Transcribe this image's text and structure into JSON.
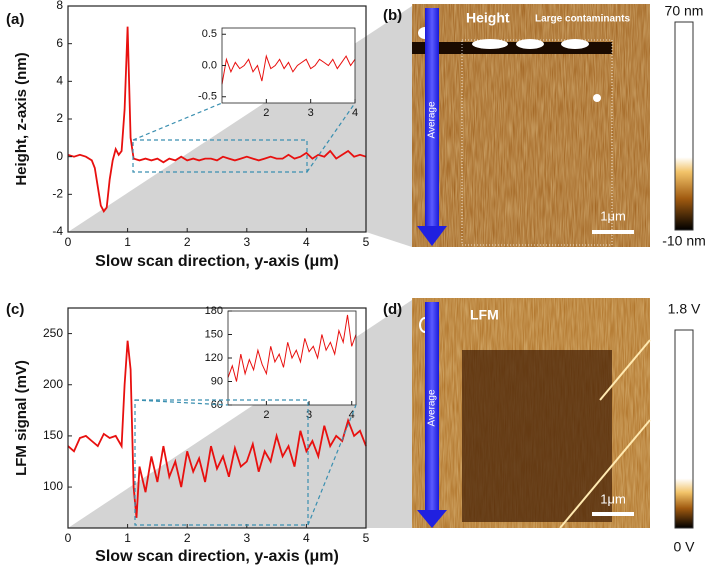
{
  "chart_data": [
    {
      "type": "line",
      "title": "(a)",
      "xlabel": "Slow scan direction, y-axis (μm)",
      "ylabel": "Height, z-axis (nm)",
      "x": [
        0,
        0.1,
        0.2,
        0.3,
        0.4,
        0.45,
        0.5,
        0.55,
        0.6,
        0.65,
        0.7,
        0.75,
        0.8,
        0.85,
        0.9,
        0.95,
        1.0,
        1.05,
        1.1,
        1.2,
        1.3,
        1.4,
        1.5,
        1.6,
        1.7,
        1.8,
        1.9,
        2.0,
        2.1,
        2.2,
        2.3,
        2.4,
        2.5,
        2.6,
        2.7,
        2.8,
        2.9,
        3.0,
        3.1,
        3.2,
        3.3,
        3.4,
        3.5,
        3.6,
        3.7,
        3.8,
        3.9,
        4.0,
        4.1,
        4.2,
        4.3,
        4.4,
        4.5,
        4.6,
        4.7,
        4.8,
        4.9,
        5.0
      ],
      "series": [
        {
          "color": "#e8100f",
          "values": [
            0.1,
            0,
            0.1,
            0,
            -0.2,
            -0.6,
            -1.6,
            -2.6,
            -2.9,
            -2.7,
            -1.2,
            -0.2,
            0.4,
            0.1,
            0.3,
            2.5,
            6.9,
            1.0,
            -0.1,
            -0.2,
            -0.1,
            -0.2,
            -0.1,
            -0.3,
            -0.1,
            -0.2,
            0,
            -0.2,
            -0.1,
            -0.2,
            -0.1,
            -0.1,
            -0.2,
            0,
            -0.1,
            -0.2,
            -0.1,
            0,
            -0.1,
            -0.2,
            -0.1,
            0,
            -0.1,
            -0.1,
            0.1,
            -0.1,
            0,
            0.2,
            -0.1,
            0.1,
            0,
            0.3,
            -0.1,
            0.1,
            0.3,
            0,
            0.1,
            0
          ]
        }
      ],
      "xlim": [
        0,
        5
      ],
      "ylim": [
        -4,
        8
      ],
      "xticks": [
        0,
        1,
        2,
        3,
        4,
        5
      ],
      "yticks": [
        -4,
        -2,
        0,
        2,
        4,
        6,
        8
      ]
    },
    {
      "type": "line",
      "x": [
        1.0,
        1.1,
        1.2,
        1.3,
        1.4,
        1.5,
        1.6,
        1.7,
        1.8,
        1.9,
        2.0,
        2.1,
        2.2,
        2.3,
        2.4,
        2.5,
        2.6,
        2.7,
        2.8,
        2.9,
        3.0,
        3.1,
        3.2,
        3.3,
        3.4,
        3.5,
        3.6,
        3.7,
        3.8,
        3.9,
        4.0
      ],
      "series": [
        {
          "color": "#e8100f",
          "values": [
            -0.3,
            0.1,
            -0.1,
            0.05,
            -0.05,
            0,
            0.1,
            -0.1,
            0,
            -0.25,
            0.15,
            -0.05,
            0,
            0.1,
            -0.05,
            0.05,
            -0.1,
            0,
            0.05,
            0.1,
            -0.05,
            0,
            0.1,
            0.05,
            0,
            0.1,
            -0.05,
            0.05,
            0.15,
            0,
            0.1
          ]
        }
      ],
      "xlim": [
        1,
        4
      ],
      "ylim": [
        -0.6,
        0.6
      ],
      "xticks": [
        2,
        3,
        4
      ],
      "yticks": [
        0.5,
        {
          "value": 0,
          "label": "0.0"
        },
        -0.5
      ]
    },
    {
      "type": "line",
      "title": "(c)",
      "xlabel": "Slow scan direction, y-axis (μm)",
      "ylabel": "LFM signal (mV)",
      "x": [
        0,
        0.1,
        0.2,
        0.3,
        0.4,
        0.5,
        0.6,
        0.7,
        0.8,
        0.9,
        0.95,
        1.0,
        1.05,
        1.1,
        1.15,
        1.2,
        1.3,
        1.4,
        1.5,
        1.6,
        1.7,
        1.8,
        1.9,
        2.0,
        2.1,
        2.2,
        2.3,
        2.4,
        2.5,
        2.6,
        2.7,
        2.8,
        2.9,
        3.0,
        3.1,
        3.2,
        3.3,
        3.4,
        3.5,
        3.6,
        3.7,
        3.8,
        3.9,
        4.0,
        4.1,
        4.2,
        4.3,
        4.4,
        4.5,
        4.6,
        4.7,
        4.8,
        4.9,
        5.0
      ],
      "series": [
        {
          "color": "#e8100f",
          "values": [
            140,
            135,
            148,
            150,
            145,
            140,
            152,
            148,
            150,
            140,
            200,
            243,
            215,
            100,
            70,
            120,
            95,
            130,
            105,
            140,
            110,
            125,
            100,
            135,
            115,
            128,
            105,
            140,
            118,
            130,
            110,
            138,
            120,
            125,
            142,
            115,
            135,
            125,
            150,
            130,
            140,
            120,
            155,
            135,
            145,
            130,
            160,
            140,
            150,
            145,
            165,
            150,
            155,
            140
          ]
        }
      ],
      "xlim": [
        0,
        5
      ],
      "ylim": [
        60,
        275
      ],
      "xticks": [
        0,
        1,
        2,
        3,
        4,
        5
      ],
      "yticks": [
        100,
        150,
        200,
        250
      ]
    },
    {
      "type": "line",
      "x": [
        1.1,
        1.2,
        1.3,
        1.4,
        1.5,
        1.6,
        1.7,
        1.8,
        1.9,
        2.0,
        2.1,
        2.2,
        2.3,
        2.4,
        2.5,
        2.6,
        2.7,
        2.8,
        2.9,
        3.0,
        3.1,
        3.2,
        3.3,
        3.4,
        3.5,
        3.6,
        3.7,
        3.8,
        3.9,
        4.0,
        4.1
      ],
      "series": [
        {
          "color": "#e8100f",
          "values": [
            95,
            110,
            90,
            125,
            100,
            118,
            105,
            130,
            112,
            100,
            135,
            115,
            125,
            108,
            140,
            120,
            130,
            115,
            145,
            128,
            135,
            120,
            150,
            130,
            140,
            125,
            155,
            140,
            175,
            135,
            150
          ]
        }
      ],
      "xlim": [
        1.1,
        4.1
      ],
      "ylim": [
        60,
        180
      ],
      "xticks": [
        2,
        3,
        4
      ],
      "yticks": [
        60,
        90,
        120,
        150,
        180
      ]
    }
  ],
  "images": [
    {
      "panel": "(b)",
      "label": "Height",
      "annotation": "Large contaminants",
      "arrow_label": "Average",
      "scale_bar": "1μm",
      "colorbar_max": "70 nm",
      "colorbar_min": "-10 nm"
    },
    {
      "panel": "(d)",
      "label": "LFM",
      "arrow_label": "Average",
      "scale_bar": "1μm",
      "colorbar_max": "1.8 V",
      "colorbar_min": "0 V"
    }
  ]
}
